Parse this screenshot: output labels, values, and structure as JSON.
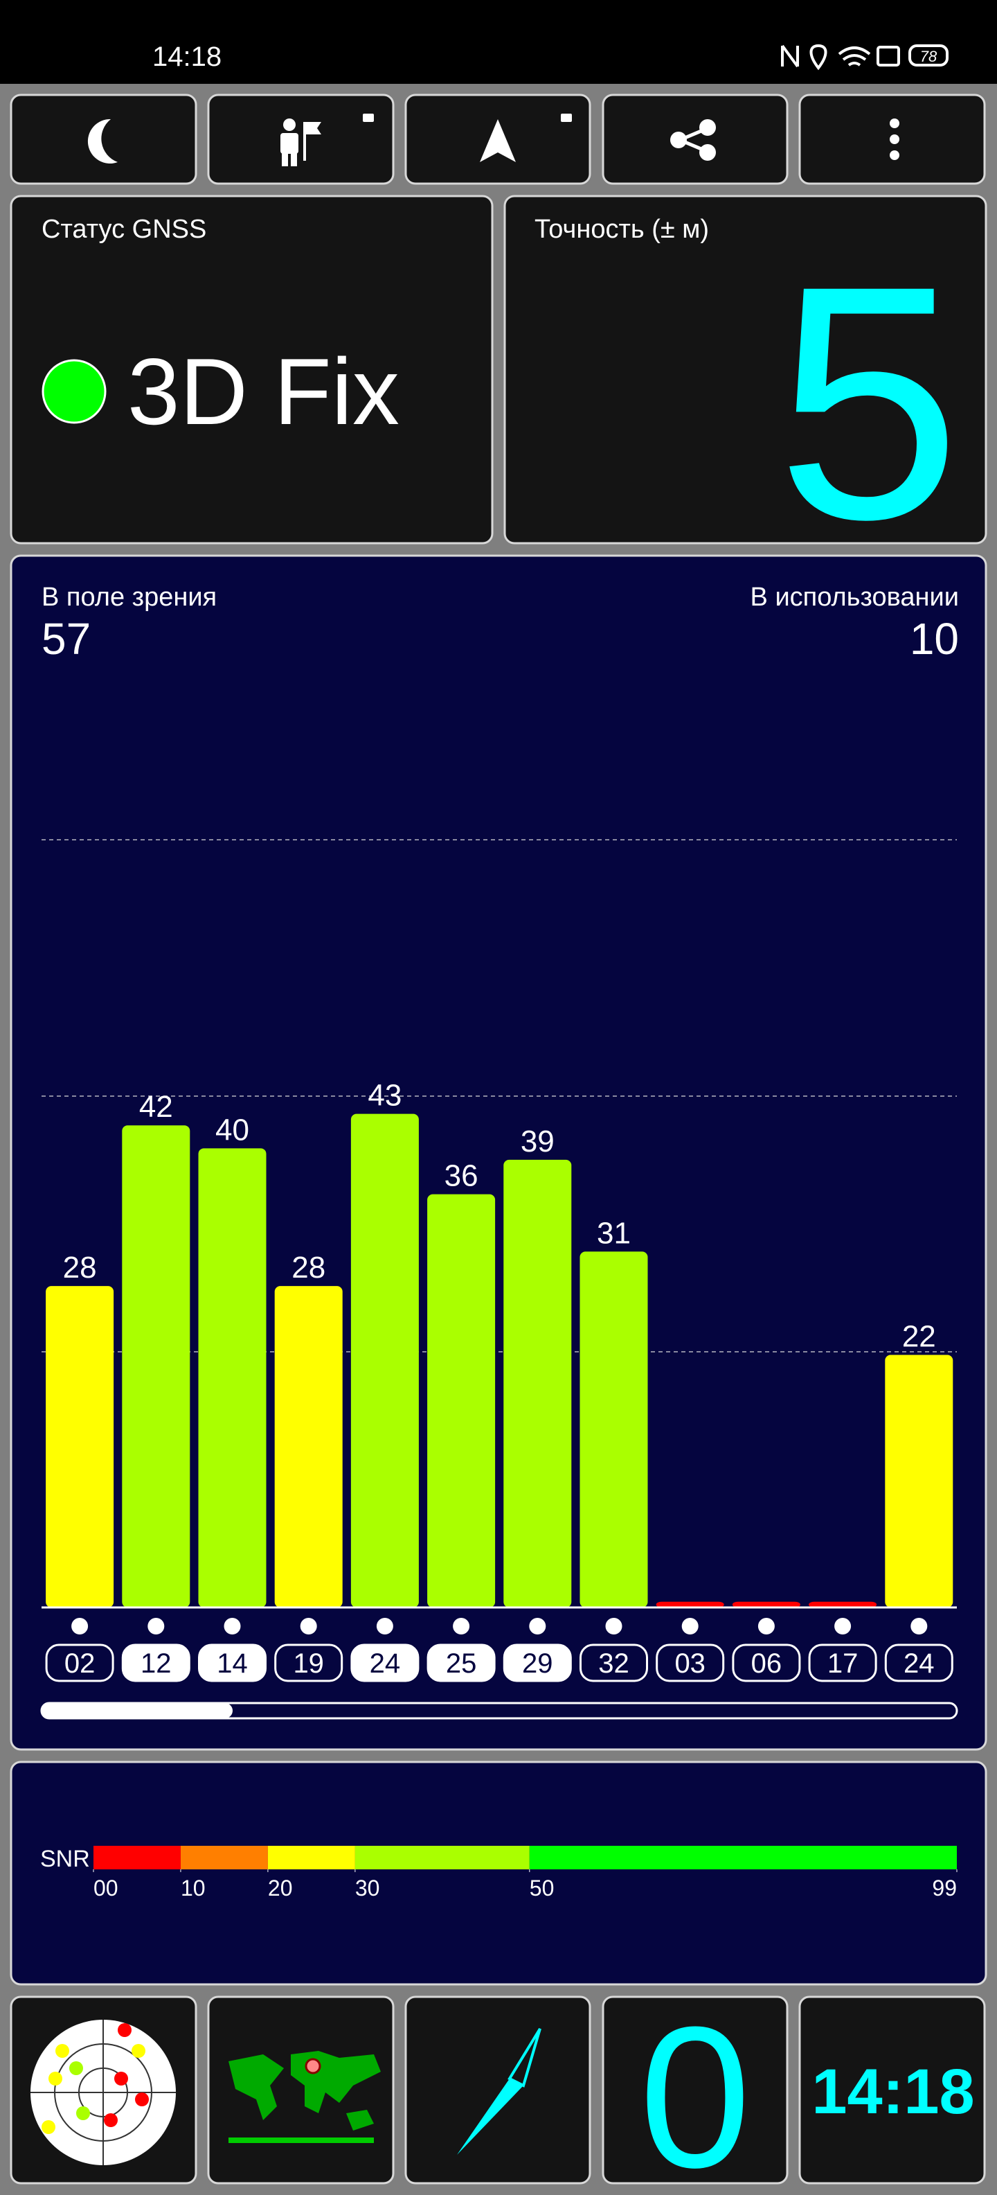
{
  "status_bar": {
    "time": "14:18",
    "battery": "78"
  },
  "gnss_status": {
    "label": "Статус GNSS",
    "value": "3D Fix"
  },
  "accuracy": {
    "label": "Точность (± м)",
    "value": "5"
  },
  "chart_data": {
    "type": "bar",
    "in_view_label": "В поле зрения",
    "in_view": 57,
    "in_use_label": "В использовании",
    "in_use": 10,
    "categories": [
      "02",
      "12",
      "14",
      "19",
      "24",
      "25",
      "29",
      "32",
      "03",
      "06",
      "17",
      "24"
    ],
    "values": [
      28,
      42,
      40,
      28,
      43,
      36,
      39,
      31,
      0.5,
      0.5,
      0.5,
      22
    ],
    "value_labels": [
      "28",
      "42",
      "40",
      "28",
      "43",
      "36",
      "39",
      "31",
      null,
      null,
      null,
      "22"
    ],
    "used": [
      false,
      true,
      true,
      false,
      true,
      true,
      true,
      false,
      false,
      false,
      false,
      false
    ],
    "ylim": [
      0,
      90
    ]
  },
  "snr_legend": {
    "label": "SNR",
    "xlim": [
      0,
      99
    ],
    "ticks": [
      {
        "value": 0,
        "label": "00"
      },
      10,
      20,
      30,
      50,
      99
    ],
    "bands": [
      {
        "from": 0,
        "to": 10,
        "color": "#ff0000"
      },
      {
        "from": 10,
        "to": 20,
        "color": "#ff7f00"
      },
      {
        "from": 20,
        "to": 30,
        "color": "#ffff00"
      },
      {
        "from": 30,
        "to": 50,
        "color": "#aaff00"
      },
      {
        "from": 50,
        "to": 99,
        "color": "#00ff00"
      }
    ]
  },
  "bottom": {
    "count": "0",
    "clock": "14:18"
  }
}
